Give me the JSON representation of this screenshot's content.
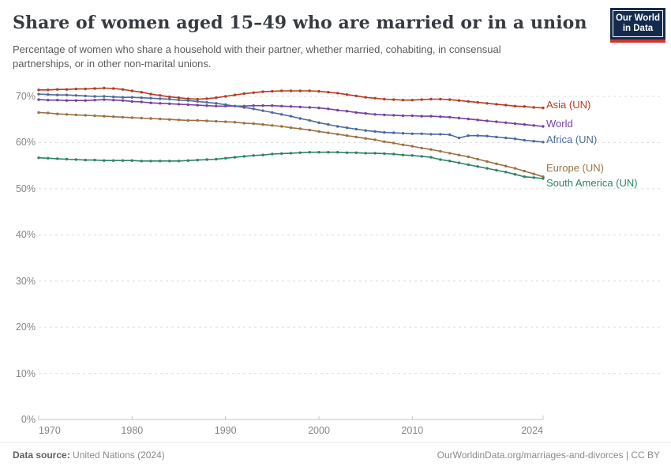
{
  "header": {
    "title": "Share of women aged 15–49 who are married or in a union",
    "subtitle": "Percentage of women who share a household with their partner, whether married, cohabiting, in consensual partnerships, or in other non-marital unions."
  },
  "logo": {
    "line1": "Our World",
    "line2": "in Data",
    "bg_color": "#132c4d",
    "stripe_color": "#d4342c"
  },
  "footer": {
    "source_label": "Data source:",
    "source_value": " United Nations (2024)",
    "credit": "OurWorldinData.org/marriages-and-divorces | CC BY"
  },
  "chart_data": {
    "type": "line",
    "title": "Share of women aged 15–49 who are married or in a union",
    "xlabel": "",
    "ylabel": "",
    "x_range": [
      1970,
      2024
    ],
    "ylim": [
      0,
      72.5
    ],
    "grid": "dashed-horizontal",
    "legend_position": "right-of-line-ends",
    "yticks": [
      0,
      10,
      20,
      30,
      40,
      50,
      60,
      70
    ],
    "ytick_labels": [
      "0%",
      "10%",
      "20%",
      "30%",
      "40%",
      "50%",
      "60%",
      "70%"
    ],
    "xticks": [
      1970,
      1980,
      1990,
      2000,
      2010,
      2024
    ],
    "xtick_labels": [
      "1970",
      "1980",
      "1990",
      "2000",
      "2010",
      "2024"
    ],
    "x": [
      1970,
      1971,
      1972,
      1973,
      1974,
      1975,
      1976,
      1977,
      1978,
      1979,
      1980,
      1981,
      1982,
      1983,
      1984,
      1985,
      1986,
      1987,
      1988,
      1989,
      1990,
      1991,
      1992,
      1993,
      1994,
      1995,
      1996,
      1997,
      1998,
      1999,
      2000,
      2001,
      2002,
      2003,
      2004,
      2005,
      2006,
      2007,
      2008,
      2009,
      2010,
      2011,
      2012,
      2013,
      2014,
      2015,
      2016,
      2017,
      2018,
      2019,
      2020,
      2021,
      2022,
      2023,
      2024
    ],
    "series": [
      {
        "name": "Asia (UN)",
        "color": "#b63c22",
        "values": [
          71.4,
          71.4,
          71.5,
          71.5,
          71.6,
          71.6,
          71.7,
          71.8,
          71.7,
          71.5,
          71.2,
          70.9,
          70.5,
          70.2,
          69.9,
          69.7,
          69.5,
          69.4,
          69.5,
          69.7,
          70.0,
          70.3,
          70.6,
          70.8,
          71.0,
          71.1,
          71.2,
          71.2,
          71.2,
          71.2,
          71.1,
          70.9,
          70.7,
          70.4,
          70.1,
          69.8,
          69.6,
          69.4,
          69.3,
          69.2,
          69.2,
          69.3,
          69.4,
          69.4,
          69.3,
          69.1,
          68.9,
          68.7,
          68.5,
          68.3,
          68.1,
          67.9,
          67.8,
          67.6,
          67.5
        ]
      },
      {
        "name": "World",
        "color": "#7740a0",
        "values": [
          69.3,
          69.2,
          69.2,
          69.1,
          69.1,
          69.1,
          69.2,
          69.3,
          69.2,
          69.1,
          68.9,
          68.8,
          68.6,
          68.5,
          68.4,
          68.3,
          68.2,
          68.1,
          68.0,
          67.9,
          67.9,
          67.9,
          67.9,
          68.0,
          68.0,
          68.0,
          67.9,
          67.8,
          67.7,
          67.6,
          67.5,
          67.3,
          67.0,
          66.8,
          66.5,
          66.3,
          66.1,
          66.0,
          65.9,
          65.8,
          65.8,
          65.7,
          65.7,
          65.6,
          65.5,
          65.3,
          65.1,
          64.9,
          64.7,
          64.5,
          64.3,
          64.1,
          63.9,
          63.7,
          63.5
        ]
      },
      {
        "name": "Africa (UN)",
        "color": "#4c6a9c",
        "values": [
          70.5,
          70.4,
          70.3,
          70.3,
          70.2,
          70.1,
          70.0,
          70.0,
          69.9,
          69.8,
          69.8,
          69.7,
          69.6,
          69.5,
          69.4,
          69.2,
          69.1,
          68.9,
          68.7,
          68.5,
          68.2,
          67.9,
          67.6,
          67.3,
          66.9,
          66.5,
          66.1,
          65.7,
          65.2,
          64.8,
          64.3,
          63.9,
          63.5,
          63.2,
          62.9,
          62.6,
          62.4,
          62.2,
          62.1,
          62.0,
          61.9,
          61.9,
          61.8,
          61.8,
          61.7,
          61.0,
          61.5,
          61.5,
          61.4,
          61.2,
          61.0,
          60.8,
          60.5,
          60.3,
          60.1
        ]
      },
      {
        "name": "Europe (UN)",
        "color": "#9c7142",
        "values": [
          66.5,
          66.4,
          66.2,
          66.1,
          66.0,
          65.9,
          65.8,
          65.7,
          65.6,
          65.5,
          65.4,
          65.3,
          65.2,
          65.1,
          65.0,
          64.9,
          64.8,
          64.8,
          64.7,
          64.6,
          64.5,
          64.4,
          64.2,
          64.1,
          63.9,
          63.7,
          63.5,
          63.2,
          63.0,
          62.7,
          62.4,
          62.1,
          61.8,
          61.5,
          61.2,
          60.9,
          60.6,
          60.2,
          59.9,
          59.5,
          59.2,
          58.8,
          58.5,
          58.1,
          57.7,
          57.3,
          56.9,
          56.4,
          55.9,
          55.4,
          54.9,
          54.4,
          53.8,
          53.2,
          52.6
        ]
      },
      {
        "name": "South America (UN)",
        "color": "#2c8465",
        "values": [
          56.7,
          56.6,
          56.5,
          56.4,
          56.3,
          56.2,
          56.2,
          56.1,
          56.1,
          56.1,
          56.1,
          56.0,
          56.0,
          56.0,
          56.0,
          56.0,
          56.1,
          56.2,
          56.3,
          56.4,
          56.6,
          56.8,
          57.0,
          57.2,
          57.3,
          57.5,
          57.6,
          57.7,
          57.8,
          57.9,
          57.9,
          57.9,
          57.9,
          57.8,
          57.8,
          57.7,
          57.7,
          57.6,
          57.5,
          57.3,
          57.2,
          57.0,
          56.8,
          56.3,
          56.0,
          55.6,
          55.2,
          54.8,
          54.4,
          54.0,
          53.6,
          53.1,
          52.6,
          52.4,
          52.2
        ]
      }
    ]
  }
}
